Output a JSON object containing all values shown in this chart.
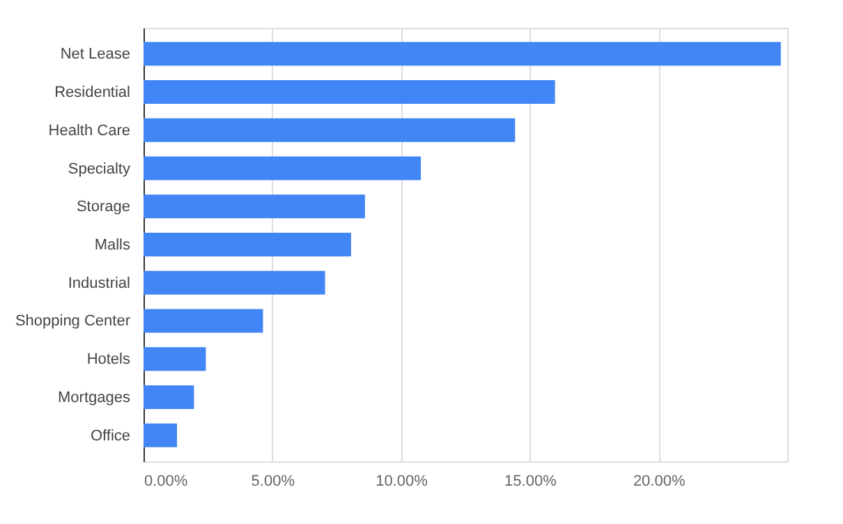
{
  "chart_data": {
    "type": "bar",
    "orientation": "horizontal",
    "categories": [
      "Net Lease",
      "Residential",
      "Health Care",
      "Specialty",
      "Storage",
      "Malls",
      "Industrial",
      "Shopping Center",
      "Hotels",
      "Mortgages",
      "Office"
    ],
    "values": [
      24.75,
      15.98,
      14.43,
      10.77,
      8.6,
      8.06,
      7.05,
      4.64,
      2.42,
      1.96,
      1.3
    ],
    "color": "#4285f4",
    "xlim": [
      0,
      25
    ],
    "xticks": [
      {
        "value": 0,
        "label": "0.00%"
      },
      {
        "value": 5,
        "label": "5.00%"
      },
      {
        "value": 10,
        "label": "10.00%"
      },
      {
        "value": 15,
        "label": "15.00%"
      },
      {
        "value": 20,
        "label": "20.00%"
      },
      {
        "value": 25,
        "label": null
      }
    ],
    "grid": "x"
  }
}
